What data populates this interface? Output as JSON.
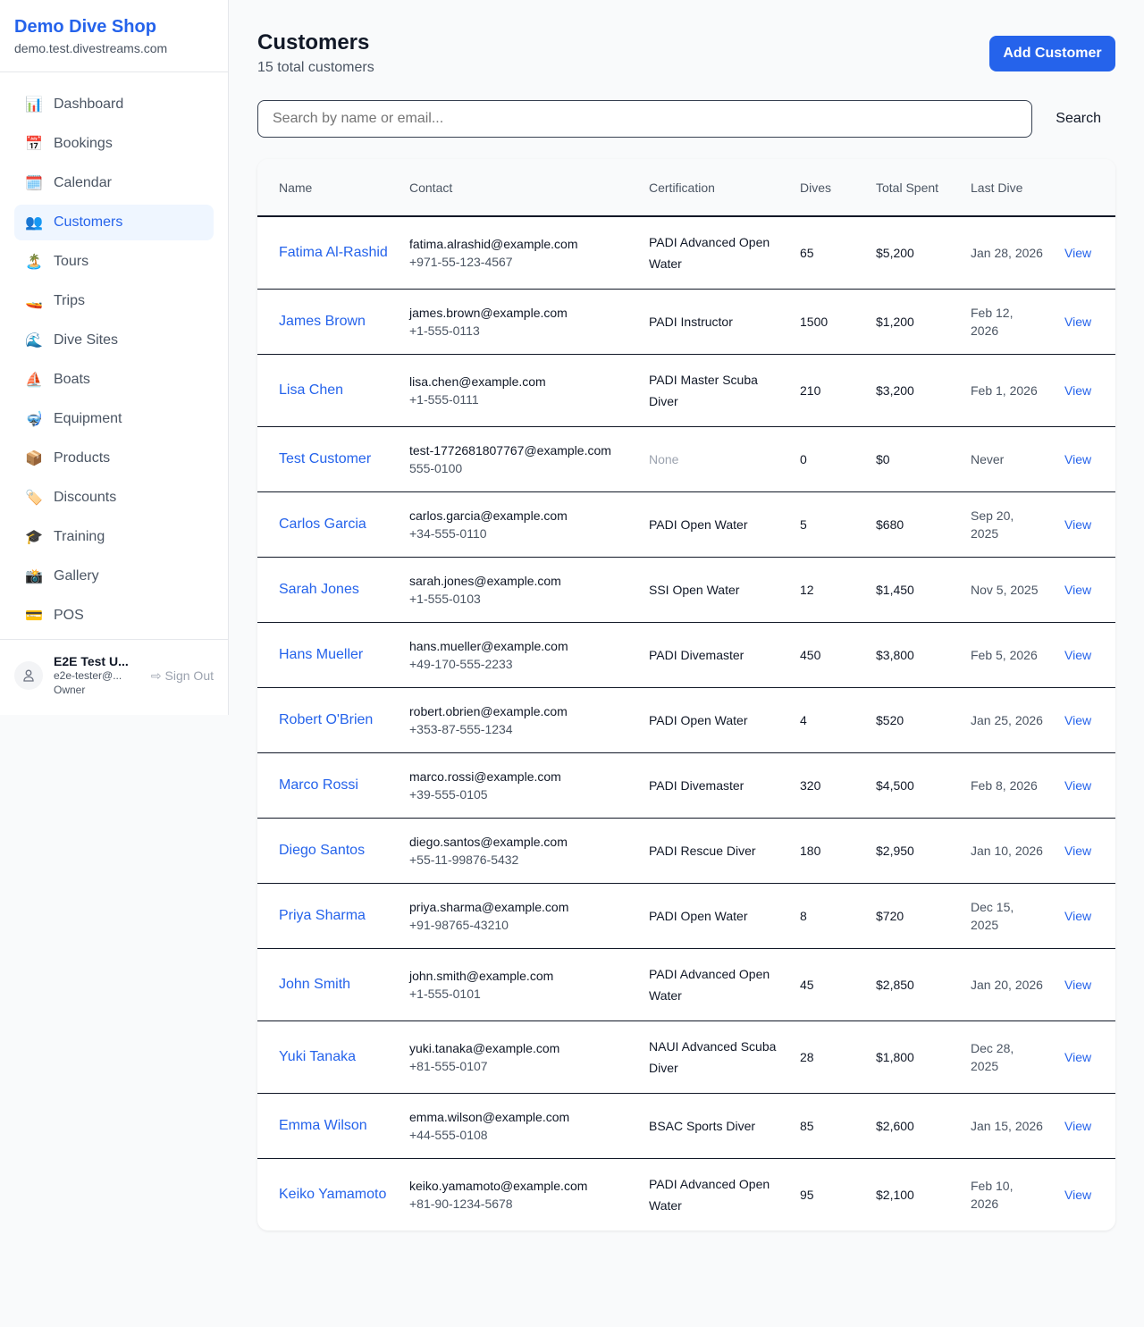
{
  "sidebar": {
    "brand": "Demo Dive Shop",
    "domain": "demo.test.divestreams.com",
    "items": [
      {
        "label": "Dashboard",
        "icon": "📊"
      },
      {
        "label": "Bookings",
        "icon": "📅"
      },
      {
        "label": "Calendar",
        "icon": "🗓️"
      },
      {
        "label": "Customers",
        "icon": "👥",
        "active": true
      },
      {
        "label": "Tours",
        "icon": "🏝️"
      },
      {
        "label": "Trips",
        "icon": "🚤"
      },
      {
        "label": "Dive Sites",
        "icon": "🌊"
      },
      {
        "label": "Boats",
        "icon": "⛵"
      },
      {
        "label": "Equipment",
        "icon": "🤿"
      },
      {
        "label": "Products",
        "icon": "📦"
      },
      {
        "label": "Discounts",
        "icon": "🏷️"
      },
      {
        "label": "Training",
        "icon": "🎓"
      },
      {
        "label": "Gallery",
        "icon": "📸"
      },
      {
        "label": "POS",
        "icon": "💳"
      }
    ],
    "user": {
      "name": "E2E Test U...",
      "email": "e2e-tester@...",
      "role": "Owner",
      "sign_out": "Sign Out"
    }
  },
  "header": {
    "title": "Customers",
    "subtitle": "15 total customers",
    "add_button": "Add Customer"
  },
  "search": {
    "placeholder": "Search by name or email...",
    "button": "Search"
  },
  "table": {
    "columns": [
      "Name",
      "Contact",
      "Certification",
      "Dives",
      "Total Spent",
      "Last Dive",
      ""
    ],
    "view_label": "View",
    "rows": [
      {
        "name": "Fatima Al-Rashid",
        "email": "fatima.alrashid@example.com",
        "phone": "+971-55-123-4567",
        "cert": "PADI Advanced Open Water",
        "dives": "65",
        "spent": "$5,200",
        "last": "Jan 28, 2026"
      },
      {
        "name": "James Brown",
        "email": "james.brown@example.com",
        "phone": "+1-555-0113",
        "cert": "PADI Instructor",
        "dives": "1500",
        "spent": "$1,200",
        "last": "Feb 12, 2026"
      },
      {
        "name": "Lisa Chen",
        "email": "lisa.chen@example.com",
        "phone": "+1-555-0111",
        "cert": "PADI Master Scuba Diver",
        "dives": "210",
        "spent": "$3,200",
        "last": "Feb 1, 2026"
      },
      {
        "name": "Test Customer",
        "email": "test-1772681807767@example.com",
        "phone": "555-0100",
        "cert": "None",
        "dives": "0",
        "spent": "$0",
        "last": "Never"
      },
      {
        "name": "Carlos Garcia",
        "email": "carlos.garcia@example.com",
        "phone": "+34-555-0110",
        "cert": "PADI Open Water",
        "dives": "5",
        "spent": "$680",
        "last": "Sep 20, 2025"
      },
      {
        "name": "Sarah Jones",
        "email": "sarah.jones@example.com",
        "phone": "+1-555-0103",
        "cert": "SSI Open Water",
        "dives": "12",
        "spent": "$1,450",
        "last": "Nov 5, 2025"
      },
      {
        "name": "Hans Mueller",
        "email": "hans.mueller@example.com",
        "phone": "+49-170-555-2233",
        "cert": "PADI Divemaster",
        "dives": "450",
        "spent": "$3,800",
        "last": "Feb 5, 2026"
      },
      {
        "name": "Robert O'Brien",
        "email": "robert.obrien@example.com",
        "phone": "+353-87-555-1234",
        "cert": "PADI Open Water",
        "dives": "4",
        "spent": "$520",
        "last": "Jan 25, 2026"
      },
      {
        "name": "Marco Rossi",
        "email": "marco.rossi@example.com",
        "phone": "+39-555-0105",
        "cert": "PADI Divemaster",
        "dives": "320",
        "spent": "$4,500",
        "last": "Feb 8, 2026"
      },
      {
        "name": "Diego Santos",
        "email": "diego.santos@example.com",
        "phone": "+55-11-99876-5432",
        "cert": "PADI Rescue Diver",
        "dives": "180",
        "spent": "$2,950",
        "last": "Jan 10, 2026"
      },
      {
        "name": "Priya Sharma",
        "email": "priya.sharma@example.com",
        "phone": "+91-98765-43210",
        "cert": "PADI Open Water",
        "dives": "8",
        "spent": "$720",
        "last": "Dec 15, 2025"
      },
      {
        "name": "John Smith",
        "email": "john.smith@example.com",
        "phone": "+1-555-0101",
        "cert": "PADI Advanced Open Water",
        "dives": "45",
        "spent": "$2,850",
        "last": "Jan 20, 2026"
      },
      {
        "name": "Yuki Tanaka",
        "email": "yuki.tanaka@example.com",
        "phone": "+81-555-0107",
        "cert": "NAUI Advanced Scuba Diver",
        "dives": "28",
        "spent": "$1,800",
        "last": "Dec 28, 2025"
      },
      {
        "name": "Emma Wilson",
        "email": "emma.wilson@example.com",
        "phone": "+44-555-0108",
        "cert": "BSAC Sports Diver",
        "dives": "85",
        "spent": "$2,600",
        "last": "Jan 15, 2026"
      },
      {
        "name": "Keiko Yamamoto",
        "email": "keiko.yamamoto@example.com",
        "phone": "+81-90-1234-5678",
        "cert": "PADI Advanced Open Water",
        "dives": "95",
        "spent": "$2,100",
        "last": "Feb 10, 2026"
      }
    ]
  },
  "colors": {
    "accent": "#2563eb",
    "active_bg": "#eff6ff"
  }
}
